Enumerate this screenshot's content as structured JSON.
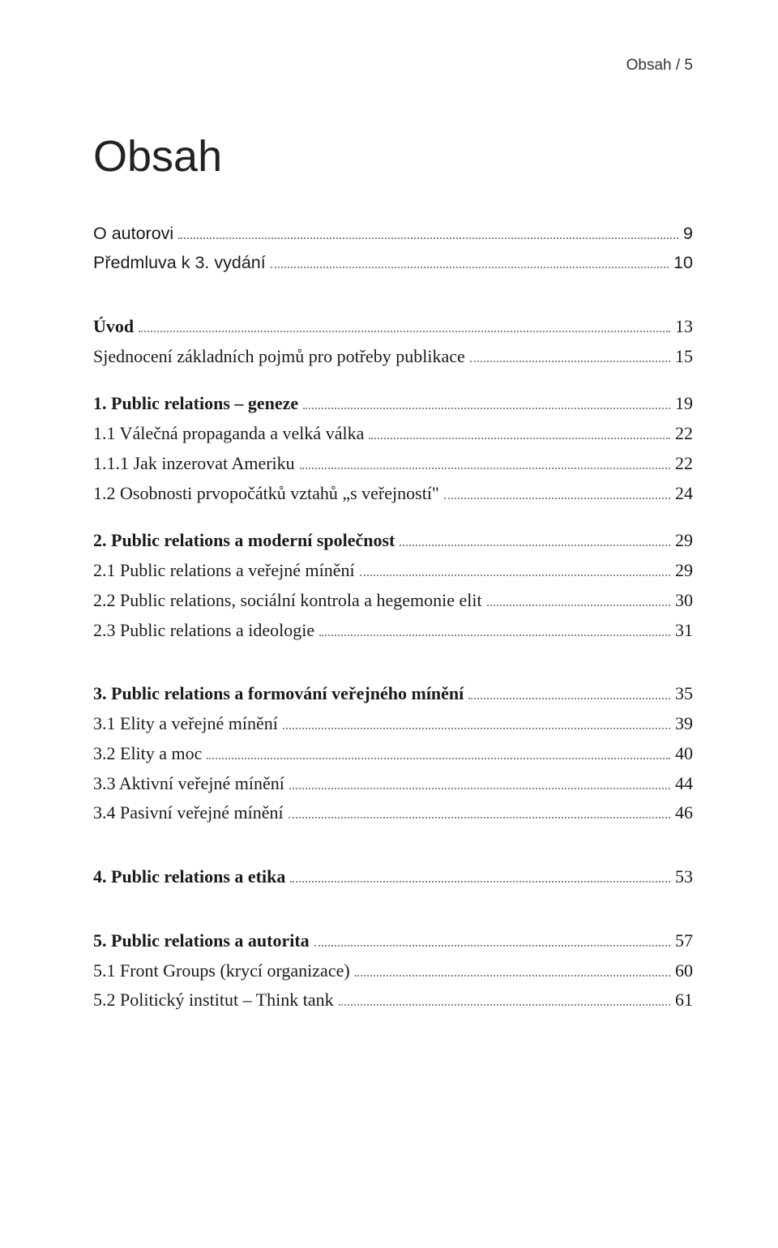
{
  "header": {
    "text": "Obsah / 5"
  },
  "title": "Obsah",
  "toc": [
    {
      "label": "O autorovi",
      "page": "9",
      "sans": true,
      "bold": false,
      "gapBefore": "none"
    },
    {
      "label": "Předmluva k 3. vydání",
      "page": "10",
      "sans": true,
      "bold": false,
      "gapBefore": "none"
    },
    {
      "label": "Úvod",
      "page": "13",
      "sans": false,
      "bold": true,
      "gapBefore": "lg"
    },
    {
      "label": "Sjednocení základních pojmů pro potřeby publikace",
      "page": "15",
      "sans": false,
      "bold": false,
      "gapBefore": "none"
    },
    {
      "label": "1. Public relations – geneze",
      "page": "19",
      "sans": false,
      "bold": true,
      "gapBefore": "md"
    },
    {
      "label": "1.1 Válečná propaganda a velká válka",
      "page": "22",
      "sans": false,
      "bold": false,
      "gapBefore": "none"
    },
    {
      "label": "1.1.1 Jak inzerovat Ameriku",
      "page": "22",
      "sans": false,
      "bold": false,
      "gapBefore": "none"
    },
    {
      "label": "1.2 Osobnosti prvopočátků vztahů „s veřejností\"",
      "page": "24",
      "sans": false,
      "bold": false,
      "gapBefore": "none"
    },
    {
      "label": "2. Public relations a moderní společnost",
      "page": "29",
      "sans": false,
      "bold": true,
      "gapBefore": "md"
    },
    {
      "label": "2.1 Public relations a veřejné mínění",
      "page": "29",
      "sans": false,
      "bold": false,
      "gapBefore": "none"
    },
    {
      "label": "2.2 Public relations, sociální kontrola a hegemonie elit",
      "page": "30",
      "sans": false,
      "bold": false,
      "gapBefore": "none"
    },
    {
      "label": "2.3 Public relations a ideologie",
      "page": "31",
      "sans": false,
      "bold": false,
      "gapBefore": "none"
    },
    {
      "label": "3. Public relations a formování veřejného mínění",
      "page": "35",
      "sans": false,
      "bold": true,
      "gapBefore": "lg"
    },
    {
      "label": "3.1 Elity a veřejné mínění",
      "page": "39",
      "sans": false,
      "bold": false,
      "gapBefore": "none"
    },
    {
      "label": "3.2 Elity a moc",
      "page": "40",
      "sans": false,
      "bold": false,
      "gapBefore": "none"
    },
    {
      "label": "3.3 Aktivní veřejné mínění",
      "page": "44",
      "sans": false,
      "bold": false,
      "gapBefore": "none"
    },
    {
      "label": "3.4 Pasivní veřejné mínění",
      "page": "46",
      "sans": false,
      "bold": false,
      "gapBefore": "none"
    },
    {
      "label": "4. Public relations a etika",
      "page": "53",
      "sans": false,
      "bold": true,
      "gapBefore": "lg"
    },
    {
      "label": "5. Public relations a autorita",
      "page": "57",
      "sans": false,
      "bold": true,
      "gapBefore": "lg"
    },
    {
      "label": "5.1 Front Groups (krycí organizace)",
      "page": "60",
      "sans": false,
      "bold": false,
      "gapBefore": "none"
    },
    {
      "label": "5.2 Politický institut – Think tank",
      "page": "61",
      "sans": false,
      "bold": false,
      "gapBefore": "none"
    }
  ]
}
